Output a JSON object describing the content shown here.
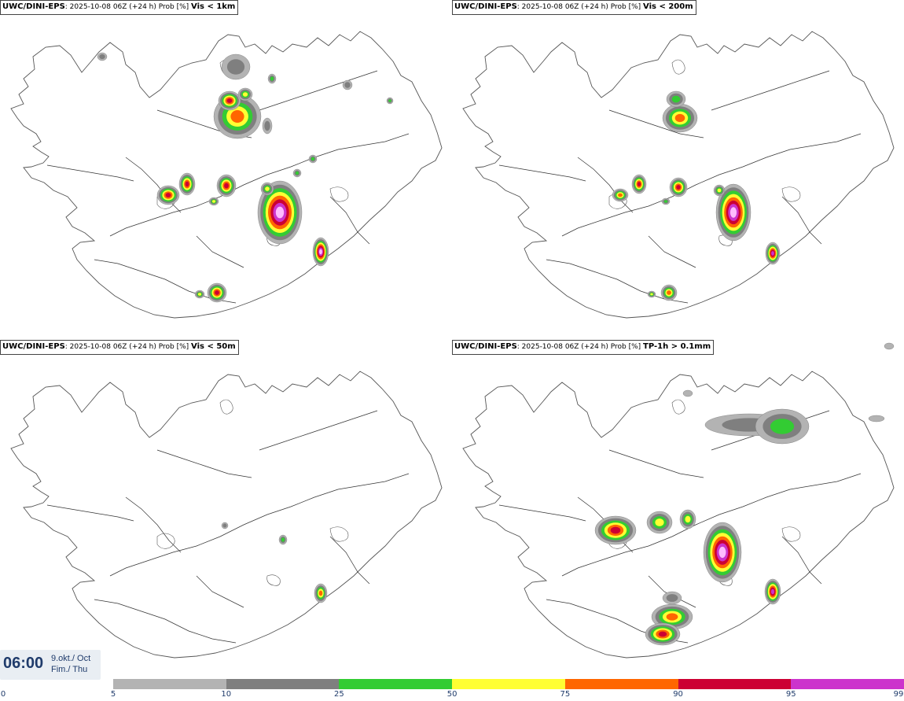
{
  "panels": [
    {
      "id": "p1",
      "model": "UWC/DINI-EPS",
      "run": ": 2025-10-08 06Z (+24 h) Prob [%] ",
      "threshold": "Vis < 1km"
    },
    {
      "id": "p2",
      "model": "UWC/DINI-EPS",
      "run": ": 2025-10-08 06Z (+24 h) Prob [%] ",
      "threshold": "Vis < 200m"
    },
    {
      "id": "p3",
      "model": "UWC/DINI-EPS",
      "run": ": 2025-10-08 06Z (+24 h) Prob [%] ",
      "threshold": "Vis < 50m"
    },
    {
      "id": "p4",
      "model": "UWC/DINI-EPS",
      "run": ": 2025-10-08 06Z (+24 h) Prob [%] ",
      "threshold": "TP-1h > 0.1mm"
    }
  ],
  "validtime": {
    "time": "06:00",
    "date_line1": "9.okt./ Oct",
    "date_line2": "Fim./ Thu"
  },
  "colorbar": {
    "labels": [
      "0",
      "5",
      "10",
      "25",
      "50",
      "75",
      "90",
      "95",
      "99"
    ],
    "colors": [
      "#ffffff",
      "#b3b3b3",
      "#7f7f7f",
      "#33cc33",
      "#ffff33",
      "#ff6600",
      "#cc0033",
      "#cc33cc",
      "#ffbbff"
    ]
  },
  "colors": {
    "coast": "#555555",
    "roads": "#333333",
    "label_text": "#1f3b6b"
  }
}
